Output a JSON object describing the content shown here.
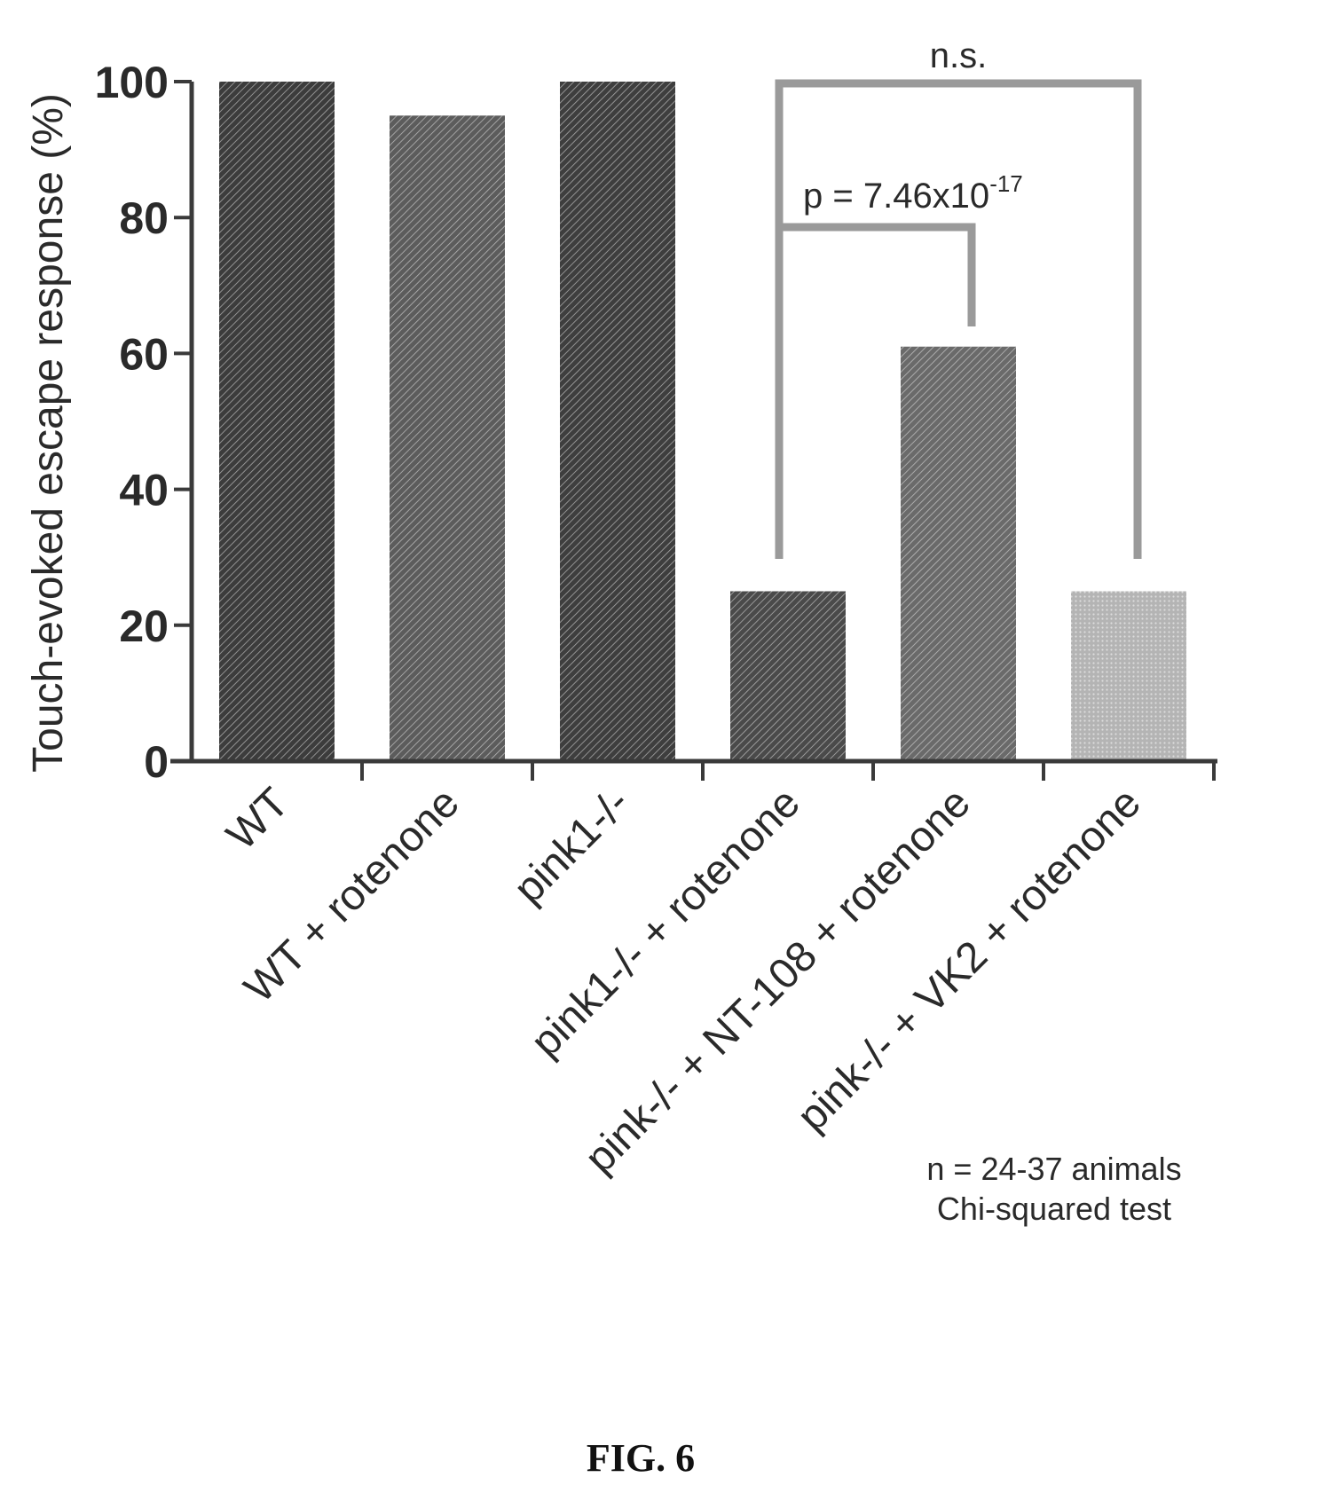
{
  "figure": {
    "caption": "FIG. 6"
  },
  "chart_data": {
    "type": "bar",
    "title": "",
    "xlabel": "",
    "ylabel": "Touch-evoked escape response (%)",
    "ylim": [
      0,
      100
    ],
    "yticks": [
      "0",
      "20",
      "40",
      "60",
      "80",
      "100"
    ],
    "categories": [
      "WT",
      "WT + rotenone",
      "pink1-/-",
      "pink1-/- + rotenone",
      "pink-/- + NT-108 + rotenone",
      "pink-/- + VK2 + rotenone"
    ],
    "values": [
      100,
      95,
      100,
      25,
      61,
      25
    ],
    "bar_colors": [
      "#3c3c3c",
      "#5c5c5c",
      "#3e3e3e",
      "#4a4a4a",
      "#6a6a6a",
      "#b4b4b4"
    ],
    "grid": false,
    "annotations": {
      "comparisons": [
        {
          "from": 3,
          "to": 5,
          "label": "n.s."
        },
        {
          "from": 3,
          "to": 4,
          "label": "p = 7.46x10",
          "exponent": "-17"
        }
      ],
      "notes": [
        "n = 24-37 animals",
        "Chi-squared test"
      ]
    }
  }
}
